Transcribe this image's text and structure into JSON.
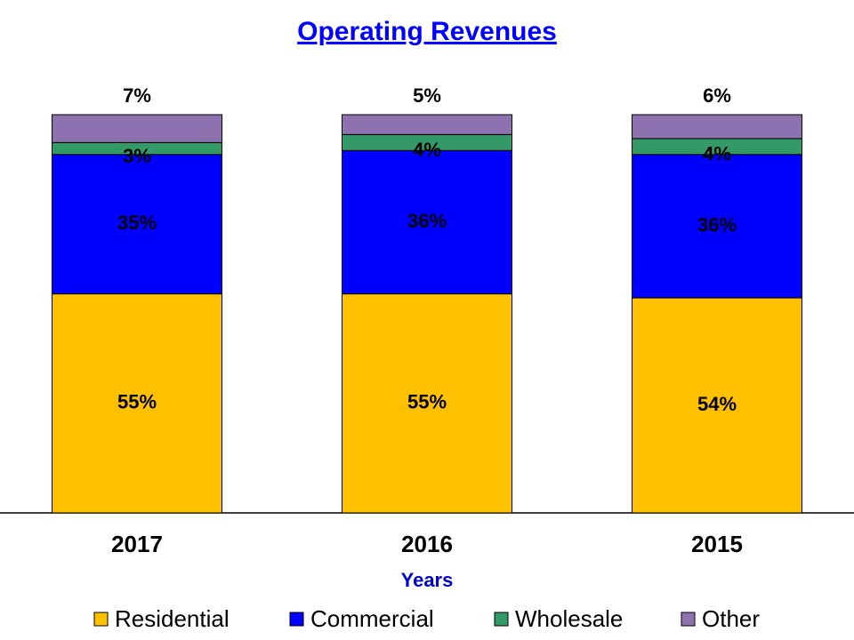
{
  "chart_data": {
    "type": "stacked_bar",
    "title": "Operating Revenues",
    "x_label": "Years",
    "categories": [
      "2017",
      "2016",
      "2015"
    ],
    "series": [
      {
        "name": "Residential",
        "color": "#ffc000",
        "values": [
          55,
          55,
          54
        ],
        "value_labels": [
          "55%",
          "55%",
          "54%"
        ]
      },
      {
        "name": "Commercial",
        "color": "#0000ff",
        "values": [
          35,
          36,
          36
        ],
        "value_labels": [
          "35%",
          "36%",
          "36%"
        ]
      },
      {
        "name": "Wholesale",
        "color": "#339966",
        "values": [
          3,
          4,
          4
        ],
        "value_labels": [
          "3%",
          "4%",
          "4%"
        ]
      },
      {
        "name": "Other",
        "color": "#8e72b0",
        "values": [
          7,
          5,
          6
        ],
        "value_labels": [
          "7%",
          "5%",
          "6%"
        ]
      }
    ],
    "legend": "bottom"
  }
}
